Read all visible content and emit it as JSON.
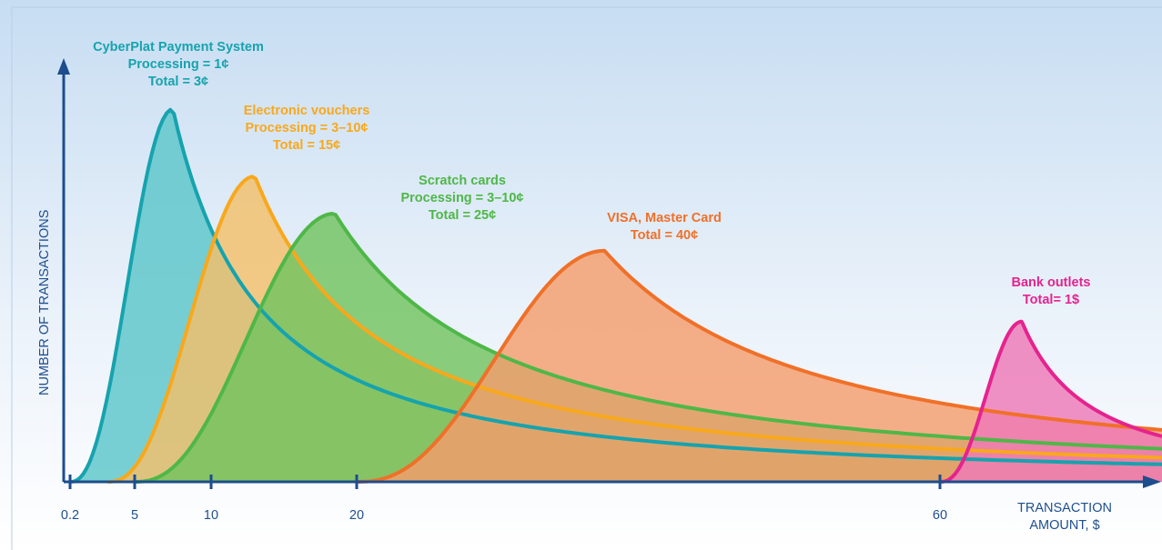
{
  "chart_data": {
    "type": "area",
    "ylabel": "NUMBER OF TRANSACTIONS",
    "xlabel_line1": "TRANSACTION",
    "xlabel_line2": "AMOUNT, $",
    "x_ticks": [
      "0.2",
      "5",
      "10",
      "20",
      "60"
    ],
    "series": [
      {
        "name": "CyberPlat Payment System",
        "label_lines": [
          "CyberPlat Payment System",
          "Processing = 1¢",
          "Total = 3¢"
        ],
        "color": "#16a3ae",
        "fill": "#5cc6c9",
        "start_x": 0.2,
        "peak_x": 7.5,
        "peak_y": 1.0
      },
      {
        "name": "Electronic vouchers",
        "label_lines": [
          "Electronic vouchers",
          "Processing = 3–10¢",
          "Total = 15¢"
        ],
        "color": "#f8a81c",
        "fill": "#f3bf6a",
        "start_x": 3,
        "peak_x": 13,
        "peak_y": 0.82
      },
      {
        "name": "Scratch cards",
        "label_lines": [
          "Scratch cards",
          "Processing = 3–10¢",
          "Total = 25¢"
        ],
        "color": "#4fb748",
        "fill": "#72c35f",
        "start_x": 5,
        "peak_x": 18.5,
        "peak_y": 0.72
      },
      {
        "name": "VISA, Master Card",
        "label_lines": [
          "VISA, Master Card",
          "Total = 40¢"
        ],
        "color": "#f07028",
        "fill": "#f49e6c",
        "start_x": 20,
        "peak_x": 37,
        "peak_y": 0.62
      },
      {
        "name": "Bank outlets",
        "label_lines": [
          "Bank outlets",
          "Total= 1$"
        ],
        "color": "#e5238f",
        "fill": "#ee79b7",
        "start_x": 60,
        "peak_x": 67,
        "peak_y": 0.43
      }
    ],
    "grid": false,
    "legend": "none"
  }
}
